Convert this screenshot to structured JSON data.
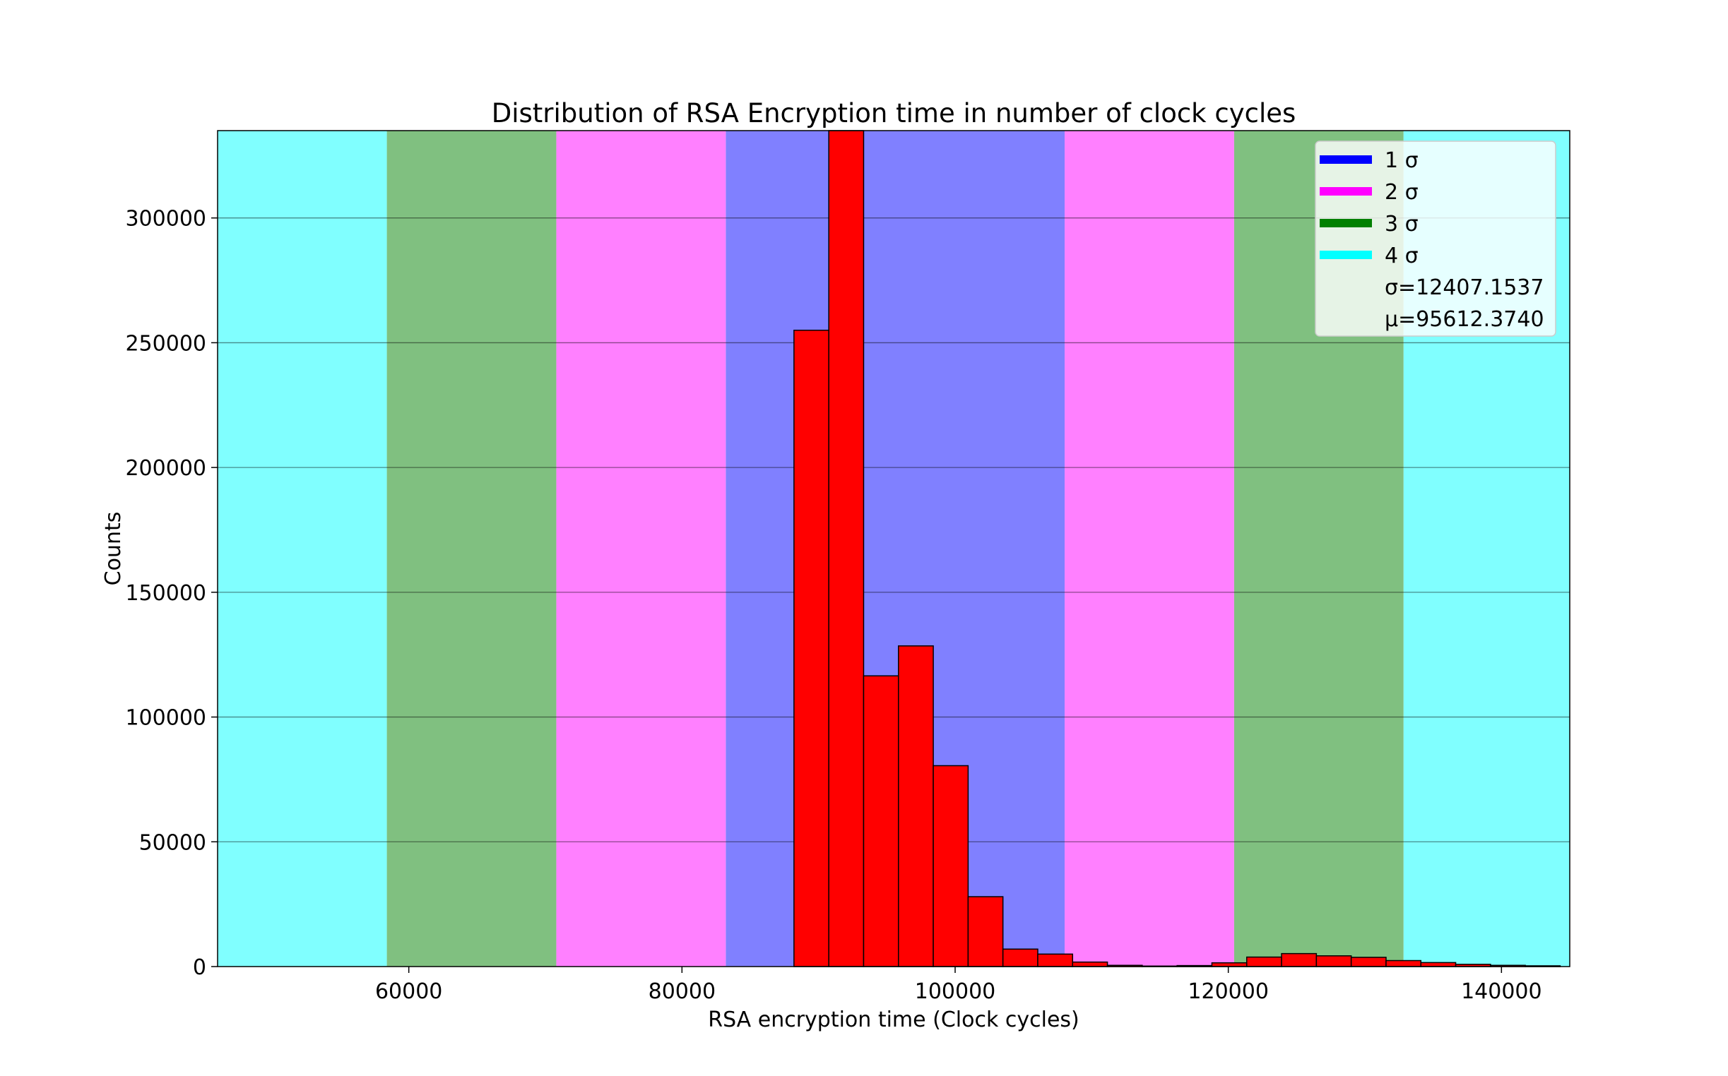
{
  "chart_data": {
    "type": "bar",
    "title": "Distribution of RSA Encryption time in number of clock cycles",
    "xlabel": "RSA encryption time (Clock cycles)",
    "ylabel": "Counts",
    "xlim": [
      46000,
      145000
    ],
    "ylim": [
      0,
      335000
    ],
    "x_ticks": [
      60000,
      80000,
      100000,
      120000,
      140000
    ],
    "y_ticks": [
      0,
      50000,
      100000,
      150000,
      200000,
      250000,
      300000
    ],
    "grid": "y",
    "legend": {
      "position": "top-right",
      "entries": [
        {
          "label": "1 σ",
          "color": "#0000ff"
        },
        {
          "label": "2 σ",
          "color": "#ff00ff"
        },
        {
          "label": "3 σ",
          "color": "#008000"
        },
        {
          "label": "4 σ",
          "color": "#00ffff"
        }
      ],
      "stats": [
        "σ=12407.1537",
        "μ=95612.3740"
      ]
    },
    "sigma_bands": {
      "mean": 95612.374,
      "sigma": 12407.1537,
      "colors": [
        "#0000ff",
        "#ff00ff",
        "#008000",
        "#00ffff"
      ],
      "opacity": 0.5
    },
    "bar_color": "#ff0000",
    "bin_edges": [
      88200,
      90750,
      93300,
      95850,
      98400,
      100950,
      103500,
      106050,
      108600,
      111150,
      113700,
      116250,
      118800,
      121350,
      123900,
      126450,
      129000,
      131550,
      134100,
      136650,
      139200,
      141750,
      144300
    ],
    "values": [
      255000,
      335000,
      116500,
      128500,
      80500,
      28000,
      7000,
      5000,
      1800,
      500,
      200,
      400,
      1500,
      3800,
      5200,
      4300,
      3700,
      2400,
      1600,
      900,
      500,
      300
    ]
  }
}
